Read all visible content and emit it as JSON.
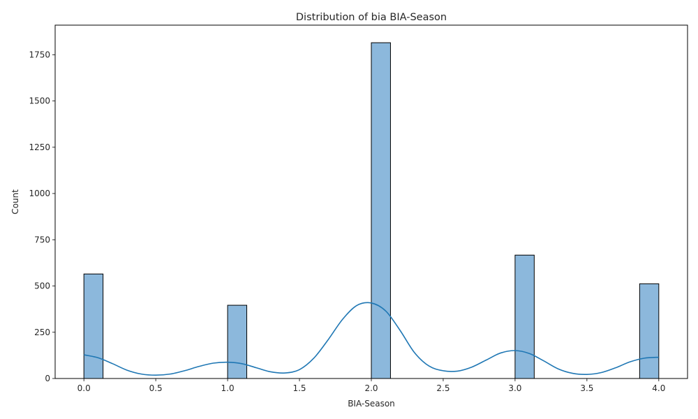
{
  "chart_data": {
    "type": "bar",
    "title": "Distribution of bia BIA-Season",
    "xlabel": "BIA-Season",
    "ylabel": "Count",
    "xlim": [
      -0.2,
      4.2
    ],
    "ylim": [
      0,
      1910
    ],
    "xticks": [
      0.0,
      0.5,
      1.0,
      1.5,
      2.0,
      2.5,
      3.0,
      3.5,
      4.0
    ],
    "xtick_labels": [
      "0.0",
      "0.5",
      "1.0",
      "1.5",
      "2.0",
      "2.5",
      "3.0",
      "3.5",
      "4.0"
    ],
    "yticks": [
      0,
      250,
      500,
      750,
      1000,
      1250,
      1500,
      1750
    ],
    "ytick_labels": [
      "0",
      "250",
      "500",
      "750",
      "1000",
      "1250",
      "1500",
      "1750"
    ],
    "bin_width": 0.1333,
    "bars": [
      {
        "x_start": 0.0,
        "x_end": 0.1333,
        "count": 565
      },
      {
        "x_start": 1.0,
        "x_end": 1.1333,
        "count": 396
      },
      {
        "x_start": 2.0,
        "x_end": 2.1333,
        "count": 1815
      },
      {
        "x_start": 3.0,
        "x_end": 3.1333,
        "count": 667
      },
      {
        "x_start": 3.8667,
        "x_end": 4.0,
        "count": 512
      }
    ],
    "kde": {
      "x": [
        0.0,
        0.1,
        0.2,
        0.3,
        0.4,
        0.5,
        0.6,
        0.7,
        0.8,
        0.9,
        1.0,
        1.1,
        1.2,
        1.3,
        1.4,
        1.5,
        1.6,
        1.7,
        1.8,
        1.9,
        2.0,
        2.1,
        2.2,
        2.3,
        2.4,
        2.5,
        2.6,
        2.7,
        2.8,
        2.9,
        3.0,
        3.1,
        3.2,
        3.3,
        3.4,
        3.5,
        3.6,
        3.7,
        3.8,
        3.9,
        4.0
      ],
      "y": [
        128,
        112,
        80,
        45,
        24,
        18,
        24,
        42,
        65,
        83,
        88,
        80,
        58,
        36,
        30,
        48,
        110,
        210,
        320,
        395,
        408,
        365,
        260,
        140,
        68,
        42,
        40,
        62,
        100,
        138,
        151,
        135,
        95,
        52,
        28,
        22,
        32,
        58,
        90,
        110,
        115
      ]
    },
    "colors": {
      "bar_fill": "#8cb8dc",
      "bar_edge": "#000000",
      "kde_line": "#1f77b4"
    }
  }
}
